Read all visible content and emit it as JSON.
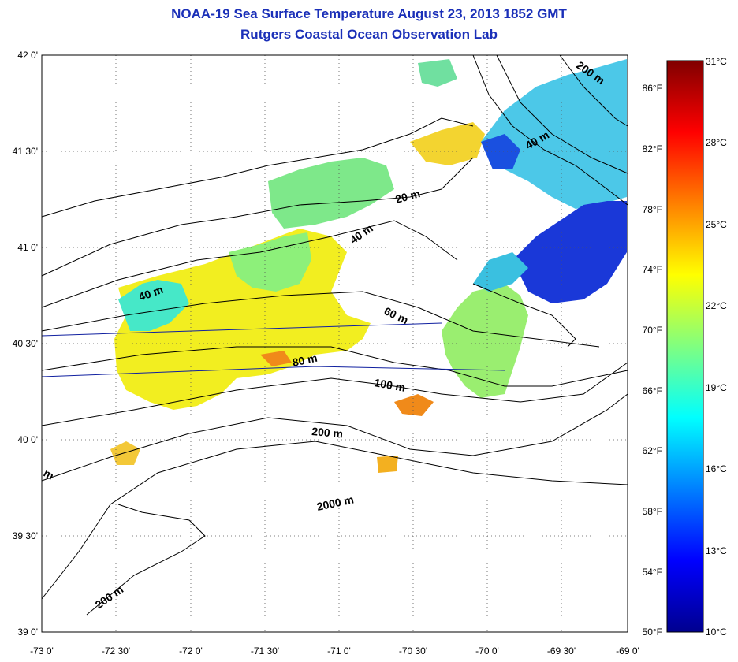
{
  "title": "NOAA-19 Sea Surface Temperature August 23, 2013 1852 GMT",
  "subtitle": "Rutgers Coastal Ocean Observation Lab",
  "lat_labels": [
    "42 0'",
    "41 30'",
    "41 0'",
    "40 30'",
    "40 0'",
    "39 30'",
    "39 0'"
  ],
  "lon_labels": [
    "-73 0'",
    "-72 30'",
    "-72 0'",
    "-71 30'",
    "-71 0'",
    "-70 30'",
    "-70 0'",
    "-69 30'",
    "-69 0'"
  ],
  "contour_labels": [
    "20 m",
    "40 m",
    "40 m",
    "40 m",
    "60 m",
    "80 m",
    "100 m",
    "200 m",
    "200 m",
    "200 m",
    "2000 m",
    "m"
  ],
  "colorbar": {
    "celsius_labels": [
      "31°C",
      "28°C",
      "25°C",
      "22°C",
      "19°C",
      "16°C",
      "13°C",
      "10°C"
    ],
    "fahrenheit_labels": [
      "86°F",
      "82°F",
      "78°F",
      "74°F",
      "70°F",
      "66°F",
      "62°F",
      "58°F",
      "54°F",
      "50°F"
    ],
    "colors": [
      "#00008f",
      "#0000ff",
      "#0080ff",
      "#00ffff",
      "#80ff80",
      "#ffff00",
      "#ff8000",
      "#ff0000",
      "#800000"
    ]
  }
}
